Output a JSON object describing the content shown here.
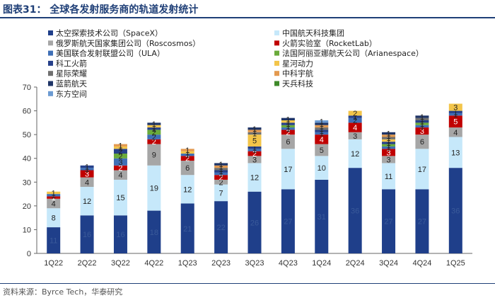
{
  "title": "图表31： 全球各发射服务商的轨道发射统计",
  "source": "资料来源：Byrce Tech，华泰研究",
  "chart_data": {
    "type": "bar",
    "stacked": true,
    "categories": [
      "1Q22",
      "2Q22",
      "3Q22",
      "4Q22",
      "1Q23",
      "2Q23",
      "3Q23",
      "4Q23",
      "1Q24",
      "2Q24",
      "3Q24",
      "4Q24",
      "1Q25"
    ],
    "ylim": [
      0,
      70
    ],
    "yticks": [
      0,
      10,
      20,
      30,
      40,
      50,
      60,
      70
    ],
    "grid": false,
    "legend_position": "top-left",
    "series": [
      {
        "name": "太空探索技术公司（SpaceX）",
        "color": "#1f3f8a",
        "label_color": "#3a5a9a",
        "values": [
          11,
          16,
          16,
          18,
          21,
          22,
          26,
          27,
          31,
          36,
          27,
          27,
          36
        ]
      },
      {
        "name": "中国航天科技集团",
        "color": "#c6e8fa",
        "label_color": "#222222",
        "values": [
          8,
          12,
          15,
          19,
          12,
          7,
          12,
          17,
          10,
          12,
          11,
          17,
          13
        ]
      },
      {
        "name": "俄罗斯航天国家集团公司（Roscosmos）",
        "color": "#a6a6a6",
        "label_color": "#222222",
        "values": [
          4,
          4,
          4,
          9,
          6,
          2,
          3,
          6,
          5,
          3,
          3,
          6,
          4
        ]
      },
      {
        "name": "火箭实验室（RocketLab）",
        "color": "#c00000",
        "label_color": "#ffffff",
        "values": [
          1,
          3,
          2,
          2,
          2,
          2,
          2,
          2,
          4,
          4,
          3,
          3,
          5
        ]
      },
      {
        "name": "美国联合发射联盟公司（ULA）",
        "color": "#3f6fb6",
        "label_color": "#222222",
        "values": [
          1,
          1,
          3,
          2,
          1,
          1,
          1,
          1,
          1,
          2,
          1,
          1,
          1
        ]
      },
      {
        "name": "法国阿丽亚娜航天公司（Arianespace）",
        "color": "#6aab3b",
        "label_color": "#222222",
        "values": [
          0,
          0,
          2,
          2,
          0,
          0,
          0,
          1,
          0,
          0,
          1,
          1,
          0
        ]
      },
      {
        "name": "科工火箭",
        "color": "#26408a",
        "label_color": "#222222",
        "values": [
          0,
          1,
          2,
          1,
          0,
          1,
          1,
          1,
          1,
          1,
          1,
          1,
          1
        ]
      },
      {
        "name": "星河动力",
        "color": "#f3c54a",
        "label_color": "#222222",
        "values": [
          1,
          0,
          1,
          1,
          1,
          0,
          5,
          1,
          0,
          2,
          1,
          0,
          3
        ]
      },
      {
        "name": "星际荣耀",
        "color": "#707070",
        "label_color": "#222222",
        "values": [
          0,
          0,
          0,
          0,
          0,
          1,
          1,
          0,
          1,
          0,
          1,
          1,
          0
        ]
      },
      {
        "name": "中科宇航",
        "color": "#e39a50",
        "label_color": "#222222",
        "values": [
          0,
          0,
          1,
          0,
          1,
          1,
          1,
          0,
          1,
          0,
          1,
          0,
          0
        ]
      },
      {
        "name": "蓝箭航天",
        "color": "#1f3567",
        "label_color": "#222222",
        "values": [
          0,
          0,
          0,
          1,
          0,
          1,
          1,
          1,
          1,
          0,
          1,
          1,
          0
        ]
      },
      {
        "name": "天兵科技",
        "color": "#3f8a2a",
        "label_color": "#222222",
        "values": [
          0,
          0,
          0,
          0,
          0,
          0,
          0,
          0,
          0,
          0,
          0,
          0,
          0
        ]
      },
      {
        "name": "东方空间",
        "color": "#6c9bd2",
        "label_color": "#222222",
        "values": [
          0,
          0,
          0,
          0,
          0,
          0,
          0,
          0,
          1,
          0,
          0,
          0,
          0
        ]
      }
    ]
  }
}
